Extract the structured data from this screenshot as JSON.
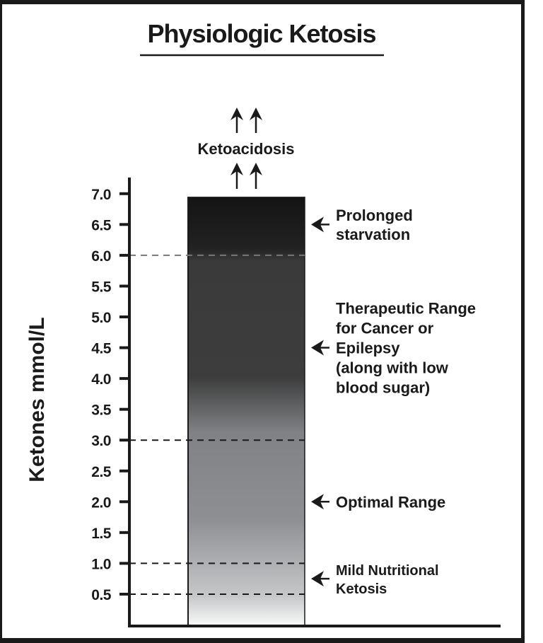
{
  "chart_data": {
    "type": "bar",
    "title": "Physiologic Ketosis",
    "ylabel": "Ketones mmol/L",
    "xlabel": "",
    "ylim": [
      0,
      7.0
    ],
    "yticks": [
      "0.5",
      "1.0",
      "1.5",
      "2.0",
      "2.5",
      "3.0",
      "3.5",
      "4.0",
      "4.5",
      "5.0",
      "5.5",
      "6.0",
      "6.5",
      "7.0"
    ],
    "bar_top": 6.95,
    "gradient": "black at top fading to white at bottom",
    "threshold_lines": [
      6.0,
      3.0,
      1.0,
      0.5
    ],
    "top_label": "Ketoacidosis",
    "annotations": [
      {
        "value": 6.5,
        "lines": [
          "Prolonged",
          "starvation"
        ]
      },
      {
        "value": 4.5,
        "lines": [
          "Therapeutic Range",
          "for Cancer or",
          "Epilepsy",
          "(along with low",
          "blood sugar)"
        ]
      },
      {
        "value": 2.0,
        "lines": [
          "Optimal Range"
        ]
      },
      {
        "value": 0.75,
        "lines": [
          "Mild Nutritional",
          "Ketosis"
        ]
      }
    ],
    "grid": false,
    "legend": "none"
  }
}
